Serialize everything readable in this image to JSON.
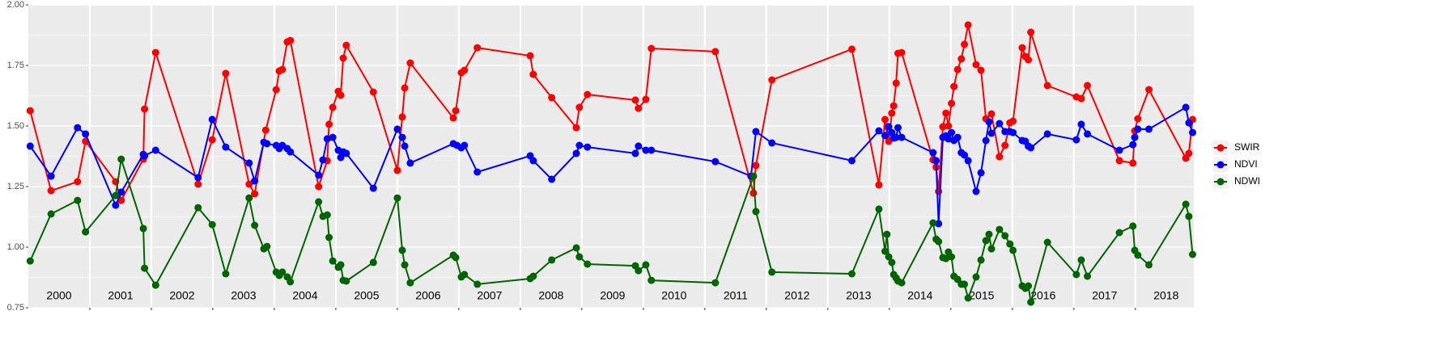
{
  "chart_data": {
    "type": "line",
    "ylim": [
      0.75,
      2.0
    ],
    "yticks": [
      0.75,
      {
        "value": 1.0,
        "label": "1.00"
      },
      1.25,
      {
        "value": 1.5,
        "label": "1.50"
      },
      1.75,
      {
        "value": 2.0,
        "label": "2.00"
      }
    ],
    "xlim": [
      2000,
      2018.95
    ],
    "year_labels": [
      2000,
      2001,
      2002,
      2003,
      2004,
      2005,
      2006,
      2007,
      2008,
      2009,
      2010,
      2011,
      2012,
      2013,
      2014,
      2015,
      2016,
      2017,
      2018
    ],
    "grid": true,
    "legend": "right",
    "series": [
      {
        "name": "SWIR",
        "color": "#ff0000",
        "x": [
          2000.03,
          2000.37,
          2000.8,
          2000.93,
          2001.42,
          2001.51,
          2001.87,
          2001.89,
          2002.07,
          2002.76,
          2002.99,
          2003.21,
          2003.59,
          2003.68,
          2003.86,
          2004.03,
          2004.08,
          2004.13,
          2004.21,
          2004.26,
          2004.72,
          2004.86,
          2004.89,
          2004.95,
          2005.04,
          2005.08,
          2005.12,
          2005.17,
          2005.61,
          2006.0,
          2006.08,
          2006.12,
          2006.21,
          2006.91,
          2006.95,
          2007.04,
          2007.09,
          2007.3,
          2008.16,
          2008.21,
          2008.51,
          2008.91,
          2008.96,
          2009.09,
          2009.87,
          2009.92,
          2010.04,
          2010.13,
          2011.17,
          2011.79,
          2011.83,
          2012.09,
          2013.39,
          2013.83,
          2013.93,
          2013.96,
          2013.99,
          2014.04,
          2014.07,
          2014.11,
          2014.14,
          2014.2,
          2014.71,
          2014.76,
          2014.8,
          2014.87,
          2014.92,
          2014.96,
          2015.01,
          2015.05,
          2015.11,
          2015.17,
          2015.22,
          2015.28,
          2015.41,
          2015.49,
          2015.57,
          2015.66,
          2015.79,
          2015.88,
          2015.96,
          2016.01,
          2016.16,
          2016.21,
          2016.26,
          2016.3,
          2016.57,
          2017.04,
          2017.12,
          2017.22,
          2017.74,
          2017.96,
          2017.99,
          2018.04,
          2018.22,
          2018.82,
          2018.87,
          2018.93
        ],
        "values": [
          1.563,
          1.233,
          1.27,
          1.437,
          1.27,
          1.193,
          1.363,
          1.57,
          1.803,
          1.26,
          1.443,
          1.717,
          1.26,
          1.22,
          1.483,
          1.65,
          1.727,
          1.733,
          1.847,
          1.853,
          1.25,
          1.357,
          1.507,
          1.577,
          1.643,
          1.627,
          1.78,
          1.833,
          1.64,
          1.317,
          1.537,
          1.657,
          1.76,
          1.533,
          1.563,
          1.72,
          1.73,
          1.823,
          1.79,
          1.713,
          1.617,
          1.493,
          1.577,
          1.63,
          1.607,
          1.573,
          1.61,
          1.82,
          1.807,
          1.223,
          1.337,
          1.69,
          1.817,
          1.257,
          1.527,
          1.497,
          1.437,
          1.553,
          1.583,
          1.677,
          1.8,
          1.803,
          1.36,
          1.33,
          1.23,
          1.497,
          1.553,
          1.5,
          1.593,
          1.663,
          1.733,
          1.777,
          1.837,
          1.917,
          1.753,
          1.73,
          1.53,
          1.55,
          1.373,
          1.42,
          1.513,
          1.52,
          1.823,
          1.787,
          1.773,
          1.887,
          1.667,
          1.62,
          1.613,
          1.667,
          1.357,
          1.347,
          1.48,
          1.53,
          1.65,
          1.367,
          1.387,
          1.527
        ]
      },
      {
        "name": "NDVI",
        "color": "#0000ff",
        "x": [
          2000.03,
          2000.37,
          2000.8,
          2000.93,
          2001.42,
          2001.51,
          2001.87,
          2001.89,
          2002.07,
          2002.76,
          2002.99,
          2003.21,
          2003.59,
          2003.68,
          2003.83,
          2003.88,
          2004.03,
          2004.08,
          2004.13,
          2004.21,
          2004.26,
          2004.72,
          2004.79,
          2004.86,
          2004.95,
          2005.04,
          2005.08,
          2005.12,
          2005.17,
          2005.61,
          2006.0,
          2006.08,
          2006.12,
          2006.21,
          2006.91,
          2006.97,
          2007.04,
          2007.09,
          2007.3,
          2008.16,
          2008.21,
          2008.51,
          2008.91,
          2008.96,
          2009.09,
          2009.87,
          2009.92,
          2010.04,
          2010.13,
          2011.17,
          2011.75,
          2011.83,
          2012.09,
          2013.39,
          2013.83,
          2013.93,
          2013.99,
          2014.04,
          2014.07,
          2014.11,
          2014.14,
          2014.2,
          2014.71,
          2014.76,
          2014.8,
          2014.87,
          2014.92,
          2014.96,
          2015.01,
          2015.05,
          2015.11,
          2015.17,
          2015.22,
          2015.28,
          2015.41,
          2015.49,
          2015.57,
          2015.62,
          2015.66,
          2015.79,
          2015.88,
          2015.96,
          2016.01,
          2016.16,
          2016.21,
          2016.26,
          2016.3,
          2016.57,
          2017.04,
          2017.12,
          2017.22,
          2017.74,
          2017.96,
          2017.99,
          2018.04,
          2018.22,
          2018.82,
          2018.87,
          2018.93
        ],
        "values": [
          1.417,
          1.293,
          1.493,
          1.467,
          1.173,
          1.227,
          1.383,
          1.377,
          1.4,
          1.287,
          1.527,
          1.413,
          1.347,
          1.273,
          1.433,
          1.427,
          1.42,
          1.407,
          1.42,
          1.407,
          1.393,
          1.297,
          1.36,
          1.447,
          1.453,
          1.4,
          1.37,
          1.393,
          1.387,
          1.243,
          1.487,
          1.453,
          1.417,
          1.347,
          1.427,
          1.42,
          1.41,
          1.42,
          1.31,
          1.377,
          1.357,
          1.28,
          1.387,
          1.42,
          1.413,
          1.387,
          1.417,
          1.4,
          1.4,
          1.353,
          1.293,
          1.477,
          1.43,
          1.357,
          1.48,
          1.46,
          1.497,
          1.473,
          1.45,
          1.453,
          1.493,
          1.453,
          1.39,
          1.357,
          1.097,
          1.453,
          1.46,
          1.447,
          1.473,
          1.44,
          1.453,
          1.39,
          1.38,
          1.357,
          1.23,
          1.307,
          1.44,
          1.517,
          1.47,
          1.51,
          1.477,
          1.477,
          1.473,
          1.44,
          1.437,
          1.417,
          1.41,
          1.467,
          1.443,
          1.507,
          1.467,
          1.4,
          1.423,
          1.453,
          1.487,
          1.487,
          1.577,
          1.513,
          1.473
        ]
      },
      {
        "name": "NDWI",
        "color": "#006400",
        "x": [
          2000.03,
          2000.37,
          2000.8,
          2000.93,
          2001.42,
          2001.51,
          2001.87,
          2001.89,
          2002.07,
          2002.76,
          2002.99,
          2003.21,
          2003.59,
          2003.68,
          2003.83,
          2003.88,
          2004.03,
          2004.08,
          2004.13,
          2004.21,
          2004.26,
          2004.72,
          2004.79,
          2004.86,
          2004.89,
          2004.95,
          2005.04,
          2005.08,
          2005.12,
          2005.17,
          2005.61,
          2006.0,
          2006.08,
          2006.12,
          2006.21,
          2006.91,
          2006.95,
          2007.04,
          2007.09,
          2007.3,
          2008.16,
          2008.21,
          2008.51,
          2008.91,
          2008.96,
          2009.09,
          2009.87,
          2009.92,
          2010.04,
          2010.13,
          2011.17,
          2011.79,
          2011.83,
          2012.09,
          2013.39,
          2013.83,
          2013.93,
          2013.96,
          2013.99,
          2014.04,
          2014.07,
          2014.11,
          2014.14,
          2014.2,
          2014.71,
          2014.76,
          2014.8,
          2014.87,
          2014.92,
          2014.96,
          2015.01,
          2015.05,
          2015.11,
          2015.17,
          2015.22,
          2015.28,
          2015.41,
          2015.49,
          2015.57,
          2015.62,
          2015.66,
          2015.79,
          2015.88,
          2015.96,
          2016.01,
          2016.16,
          2016.21,
          2016.26,
          2016.3,
          2016.57,
          2017.04,
          2017.12,
          2017.22,
          2017.74,
          2017.96,
          2017.99,
          2018.04,
          2018.22,
          2018.82,
          2018.87,
          2018.93
        ],
        "values": [
          0.943,
          1.137,
          1.193,
          1.063,
          1.213,
          1.363,
          1.077,
          0.913,
          0.843,
          1.163,
          1.093,
          0.89,
          1.203,
          1.09,
          0.993,
          1.003,
          0.897,
          0.883,
          0.897,
          0.877,
          0.857,
          1.187,
          1.127,
          1.133,
          1.04,
          0.943,
          0.917,
          0.927,
          0.863,
          0.86,
          0.937,
          1.203,
          0.987,
          0.927,
          0.853,
          0.967,
          0.957,
          0.877,
          0.887,
          0.847,
          0.87,
          0.88,
          0.947,
          0.997,
          0.96,
          0.93,
          0.923,
          0.903,
          0.927,
          0.863,
          0.853,
          1.293,
          1.147,
          0.897,
          0.89,
          1.157,
          0.983,
          1.053,
          0.96,
          0.937,
          0.887,
          0.873,
          0.86,
          0.853,
          1.1,
          1.033,
          1.023,
          0.957,
          0.953,
          0.98,
          0.96,
          0.88,
          0.867,
          0.847,
          0.847,
          0.79,
          0.877,
          0.947,
          1.027,
          1.053,
          0.993,
          1.073,
          1.047,
          1.013,
          0.987,
          0.84,
          0.83,
          0.84,
          0.773,
          1.02,
          0.887,
          0.947,
          0.88,
          1.06,
          1.087,
          0.987,
          0.967,
          0.927,
          1.177,
          1.127,
          0.97
        ]
      }
    ]
  }
}
